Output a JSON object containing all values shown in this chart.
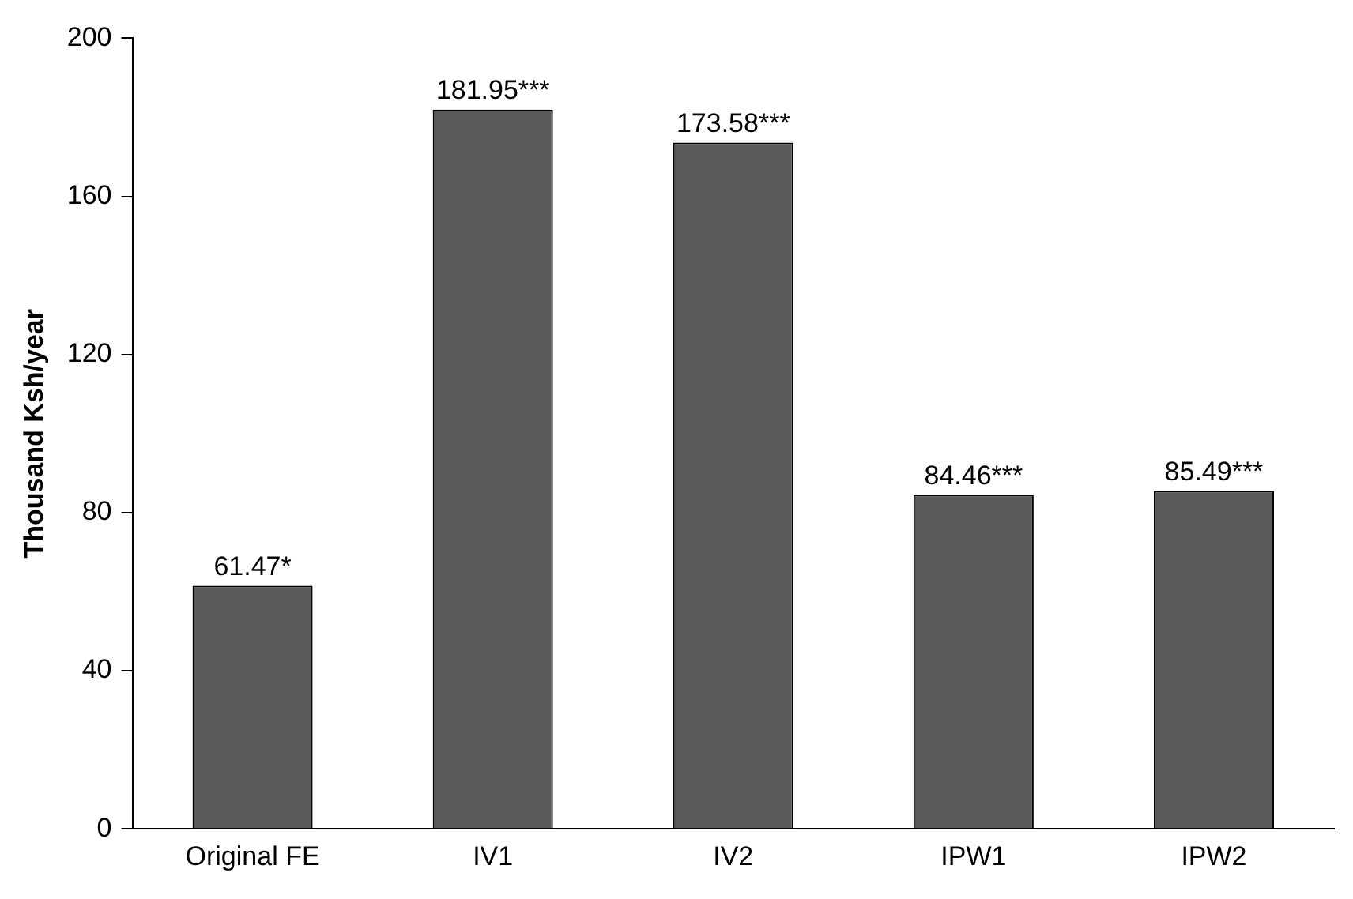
{
  "chart_data": {
    "type": "bar",
    "ylabel": "Thousand Ksh/year",
    "categories": [
      "Original FE",
      "IV1",
      "IV2",
      "IPW1",
      "IPW2"
    ],
    "values": [
      61.47,
      181.95,
      173.58,
      84.46,
      85.49
    ],
    "value_labels": [
      "61.47*",
      "181.95***",
      "173.58***",
      "84.46***",
      "85.49***"
    ],
    "color": "#595959",
    "ylim": [
      0,
      200
    ],
    "yticks": [
      0,
      40,
      80,
      120,
      160,
      200
    ],
    "grid": false,
    "legend": false
  }
}
